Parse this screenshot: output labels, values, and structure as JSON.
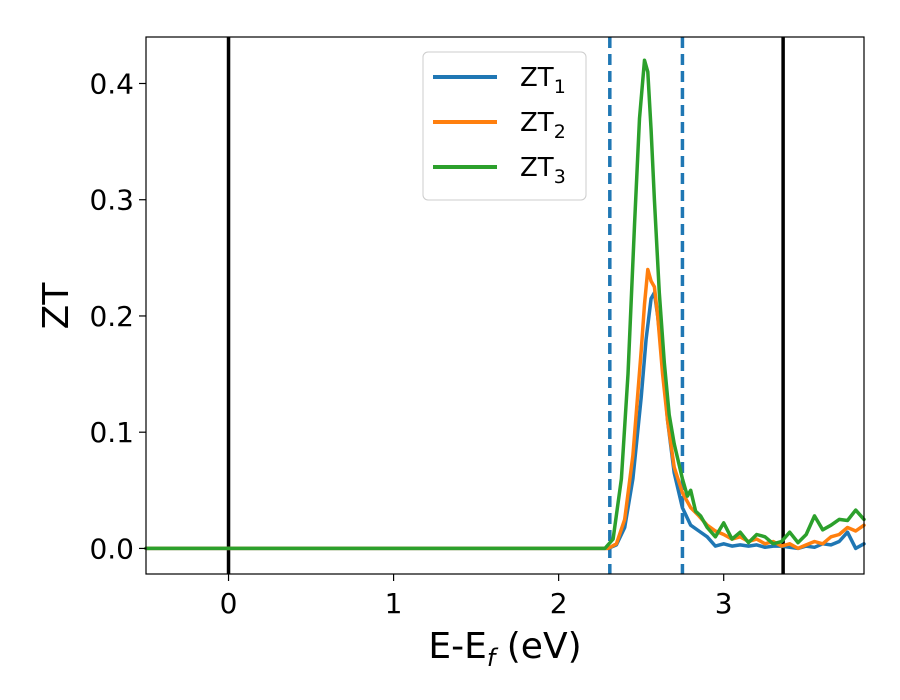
{
  "chart_data": {
    "type": "line",
    "xlabel": "E-E",
    "xlabel_sub": "f",
    "xlabel_unit": " (eV)",
    "ylabel": "ZT",
    "xlim": [
      -0.5,
      3.85
    ],
    "ylim": [
      -0.022,
      0.44
    ],
    "xticks": [
      0,
      1,
      2,
      3
    ],
    "xtick_labels": [
      "0",
      "1",
      "2",
      "3"
    ],
    "yticks": [
      0.0,
      0.1,
      0.2,
      0.3,
      0.4
    ],
    "ytick_labels": [
      "0.0",
      "0.1",
      "0.2",
      "0.3",
      "0.4"
    ],
    "grid": false,
    "legend_position": "top-center",
    "vlines": [
      {
        "x": 0.0,
        "style": "solid",
        "color": "#000000"
      },
      {
        "x": 3.36,
        "style": "solid",
        "color": "#000000"
      },
      {
        "x": 2.31,
        "style": "dashed",
        "color": "#1f77b4"
      },
      {
        "x": 2.75,
        "style": "dashed",
        "color": "#1f77b4"
      }
    ],
    "series": [
      {
        "name": "ZT",
        "subscript": "1",
        "color": "#1f77b4",
        "x": [
          -0.5,
          2.3,
          2.35,
          2.4,
          2.45,
          2.5,
          2.53,
          2.56,
          2.58,
          2.6,
          2.63,
          2.66,
          2.7,
          2.75,
          2.8,
          2.85,
          2.9,
          2.95,
          3.0,
          3.05,
          3.1,
          3.15,
          3.2,
          3.25,
          3.3,
          3.35,
          3.4,
          3.45,
          3.5,
          3.55,
          3.6,
          3.65,
          3.7,
          3.75,
          3.8,
          3.85
        ],
        "y": [
          0.0,
          0.0,
          0.003,
          0.018,
          0.06,
          0.13,
          0.18,
          0.215,
          0.22,
          0.2,
          0.16,
          0.11,
          0.065,
          0.035,
          0.02,
          0.015,
          0.01,
          0.002,
          0.004,
          0.002,
          0.003,
          0.002,
          0.003,
          0.001,
          0.002,
          0.002,
          0.001,
          0.0,
          0.002,
          0.001,
          0.004,
          0.003,
          0.006,
          0.014,
          0.0,
          0.004
        ]
      },
      {
        "name": "ZT",
        "subscript": "2",
        "color": "#ff7f0e",
        "x": [
          -0.5,
          2.3,
          2.35,
          2.4,
          2.45,
          2.5,
          2.52,
          2.54,
          2.56,
          2.58,
          2.6,
          2.63,
          2.66,
          2.7,
          2.75,
          2.8,
          2.85,
          2.9,
          2.95,
          3.0,
          3.05,
          3.1,
          3.15,
          3.2,
          3.25,
          3.3,
          3.35,
          3.4,
          3.45,
          3.5,
          3.55,
          3.6,
          3.65,
          3.7,
          3.75,
          3.8,
          3.85
        ],
        "y": [
          0.0,
          0.0,
          0.004,
          0.025,
          0.08,
          0.17,
          0.21,
          0.24,
          0.23,
          0.225,
          0.2,
          0.15,
          0.11,
          0.07,
          0.048,
          0.035,
          0.028,
          0.02,
          0.015,
          0.012,
          0.008,
          0.01,
          0.006,
          0.008,
          0.004,
          0.006,
          0.002,
          0.004,
          0.0,
          0.003,
          0.006,
          0.004,
          0.01,
          0.012,
          0.018,
          0.015,
          0.02
        ]
      },
      {
        "name": "ZT",
        "subscript": "3",
        "color": "#2ca02c",
        "x": [
          -0.5,
          2.28,
          2.33,
          2.38,
          2.42,
          2.46,
          2.49,
          2.52,
          2.54,
          2.56,
          2.58,
          2.61,
          2.64,
          2.67,
          2.7,
          2.75,
          2.78,
          2.8,
          2.83,
          2.86,
          2.9,
          2.95,
          3.0,
          3.05,
          3.1,
          3.15,
          3.2,
          3.25,
          3.3,
          3.35,
          3.4,
          3.45,
          3.5,
          3.55,
          3.6,
          3.65,
          3.7,
          3.75,
          3.8,
          3.85
        ],
        "y": [
          0.0,
          0.0,
          0.008,
          0.06,
          0.15,
          0.28,
          0.37,
          0.42,
          0.41,
          0.36,
          0.3,
          0.22,
          0.16,
          0.115,
          0.09,
          0.06,
          0.045,
          0.05,
          0.032,
          0.028,
          0.018,
          0.01,
          0.022,
          0.008,
          0.014,
          0.005,
          0.012,
          0.01,
          0.004,
          0.006,
          0.014,
          0.005,
          0.012,
          0.028,
          0.016,
          0.02,
          0.025,
          0.024,
          0.033,
          0.025
        ]
      }
    ]
  }
}
